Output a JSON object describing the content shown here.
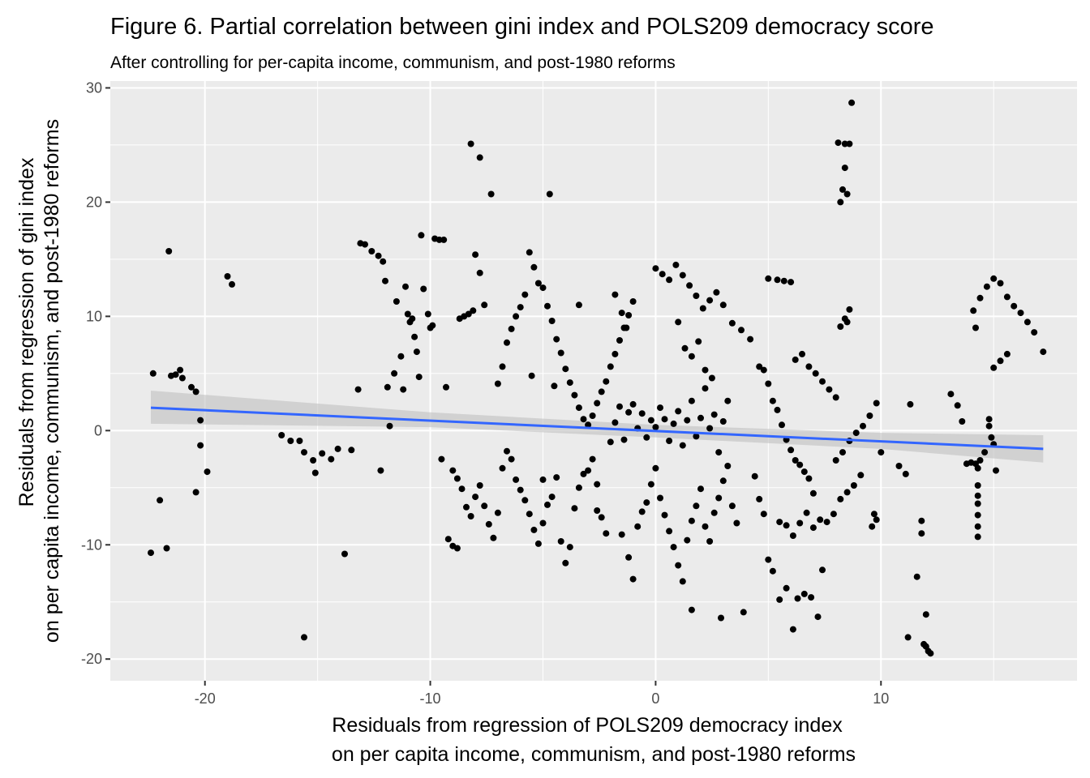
{
  "chart_data": {
    "type": "scatter",
    "title": "Figure 6. Partial correlation between gini index and POLS209 democracy score",
    "subtitle": "After controlling for per-capita income, communism, and post-1980 reforms",
    "xlabel_lines": [
      "Residuals from regression of POLS209 democracy index",
      "on per capita income, communism, and post-1980 reforms"
    ],
    "ylabel_lines": [
      "Residuals from regression of gini index",
      "on per capita income, communism, and post-1980 reforms"
    ],
    "xlim": [
      -24.2,
      18.7
    ],
    "ylim": [
      -21.9,
      30.6
    ],
    "x_ticks": [
      -20,
      -10,
      0,
      10
    ],
    "y_ticks": [
      -20,
      -10,
      0,
      10,
      20,
      30
    ],
    "x_tick_labels": [
      "-20",
      "-10",
      "0",
      "10"
    ],
    "y_tick_labels": [
      "-20",
      "-10",
      "0",
      "10",
      "20",
      "30"
    ],
    "grid": true,
    "colors": {
      "panel": "#ebebeb",
      "grid_major": "#ffffff",
      "points": "#000000",
      "fit_line": "#3366ff",
      "confidence_band": "#bfbfbf"
    },
    "fit_line": {
      "x": [
        -22.4,
        17.2
      ],
      "y": [
        2.0,
        -1.6
      ]
    },
    "confidence_band": {
      "x": [
        -22.4,
        -10,
        0,
        10,
        17.2
      ],
      "lower": [
        0.6,
        0.3,
        -0.6,
        -1.6,
        -2.8
      ],
      "upper": [
        3.5,
        1.6,
        0.5,
        -0.2,
        -0.4
      ]
    },
    "points": [
      [
        -22.4,
        -10.7
      ],
      [
        -22.3,
        5.0
      ],
      [
        -22.0,
        -6.1
      ],
      [
        -21.7,
        -10.3
      ],
      [
        -21.6,
        15.7
      ],
      [
        -21.5,
        4.8
      ],
      [
        -21.3,
        4.9
      ],
      [
        -21.1,
        5.3
      ],
      [
        -21.0,
        4.6
      ],
      [
        -20.6,
        3.8
      ],
      [
        -20.4,
        3.4
      ],
      [
        -20.4,
        -5.4
      ],
      [
        -20.2,
        0.9
      ],
      [
        -20.2,
        -1.3
      ],
      [
        -19.9,
        -3.6
      ],
      [
        -19.0,
        13.5
      ],
      [
        -18.8,
        12.8
      ],
      [
        -16.6,
        -0.4
      ],
      [
        -16.2,
        -0.9
      ],
      [
        -15.8,
        -0.9
      ],
      [
        -15.6,
        -1.9
      ],
      [
        -15.6,
        -18.1
      ],
      [
        -15.2,
        -2.6
      ],
      [
        -15.1,
        -3.7
      ],
      [
        -14.8,
        -2.0
      ],
      [
        -14.4,
        -2.5
      ],
      [
        -14.1,
        -1.6
      ],
      [
        -13.8,
        -10.8
      ],
      [
        -13.5,
        -1.7
      ],
      [
        -13.2,
        3.6
      ],
      [
        -13.1,
        16.4
      ],
      [
        -12.9,
        16.3
      ],
      [
        -12.6,
        15.7
      ],
      [
        -12.3,
        15.3
      ],
      [
        -12.1,
        14.8
      ],
      [
        -12.2,
        -3.5
      ],
      [
        -12.0,
        13.1
      ],
      [
        -11.9,
        3.8
      ],
      [
        -11.8,
        0.4
      ],
      [
        -11.6,
        5.0
      ],
      [
        -11.5,
        11.3
      ],
      [
        -11.3,
        6.5
      ],
      [
        -11.2,
        3.6
      ],
      [
        -11.1,
        12.6
      ],
      [
        -11.0,
        10.2
      ],
      [
        -10.9,
        9.5
      ],
      [
        -10.8,
        9.8
      ],
      [
        -10.7,
        8.2
      ],
      [
        -10.6,
        6.9
      ],
      [
        -10.5,
        4.7
      ],
      [
        -10.4,
        17.1
      ],
      [
        -10.3,
        12.4
      ],
      [
        -10.1,
        10.2
      ],
      [
        -10.0,
        9.0
      ],
      [
        -9.9,
        9.2
      ],
      [
        -9.8,
        16.8
      ],
      [
        -9.6,
        16.7
      ],
      [
        -9.4,
        16.7
      ],
      [
        -9.3,
        3.8
      ],
      [
        -9.2,
        -9.5
      ],
      [
        -9.0,
        -10.1
      ],
      [
        -8.8,
        -10.3
      ],
      [
        -8.7,
        9.8
      ],
      [
        -8.5,
        10.0
      ],
      [
        -8.3,
        10.2
      ],
      [
        -8.1,
        10.5
      ],
      [
        -8.0,
        15.4
      ],
      [
        -7.8,
        13.8
      ],
      [
        -7.6,
        11.0
      ],
      [
        -8.2,
        25.1
      ],
      [
        -7.8,
        23.9
      ],
      [
        -7.3,
        20.7
      ],
      [
        -9.5,
        -2.5
      ],
      [
        -9.0,
        -3.5
      ],
      [
        -8.8,
        -4.2
      ],
      [
        -8.6,
        -5.1
      ],
      [
        -8.4,
        -6.7
      ],
      [
        -8.2,
        -7.5
      ],
      [
        -8.0,
        -5.8
      ],
      [
        -7.8,
        -4.8
      ],
      [
        -7.6,
        -6.6
      ],
      [
        -7.4,
        -8.2
      ],
      [
        -7.2,
        -9.4
      ],
      [
        -7.0,
        -7.2
      ],
      [
        -6.8,
        -3.3
      ],
      [
        -6.6,
        -1.8
      ],
      [
        -6.4,
        -2.5
      ],
      [
        -6.2,
        -4.3
      ],
      [
        -6.0,
        -5.2
      ],
      [
        -5.8,
        -6.1
      ],
      [
        -5.6,
        -7.3
      ],
      [
        -5.4,
        -8.7
      ],
      [
        -5.2,
        -9.9
      ],
      [
        -5.0,
        -8.1
      ],
      [
        -4.8,
        -6.5
      ],
      [
        -4.6,
        -5.8
      ],
      [
        -4.4,
        -4.1
      ],
      [
        -4.2,
        -9.7
      ],
      [
        -4.0,
        -11.6
      ],
      [
        -3.8,
        -10.2
      ],
      [
        -3.6,
        -6.8
      ],
      [
        -3.4,
        -5.0
      ],
      [
        -3.2,
        -3.8
      ],
      [
        -3.0,
        -3.5
      ],
      [
        -2.8,
        -2.5
      ],
      [
        -2.6,
        -4.7
      ],
      [
        -2.4,
        -7.6
      ],
      [
        -2.2,
        -9.0
      ],
      [
        -7.0,
        4.1
      ],
      [
        -6.8,
        5.6
      ],
      [
        -6.6,
        7.7
      ],
      [
        -6.4,
        8.9
      ],
      [
        -6.2,
        10.0
      ],
      [
        -6.0,
        10.8
      ],
      [
        -5.8,
        11.9
      ],
      [
        -5.6,
        15.6
      ],
      [
        -5.4,
        14.3
      ],
      [
        -5.2,
        12.9
      ],
      [
        -5.0,
        12.5
      ],
      [
        -4.8,
        10.9
      ],
      [
        -4.6,
        9.6
      ],
      [
        -4.4,
        8.0
      ],
      [
        -4.2,
        6.8
      ],
      [
        -4.0,
        5.4
      ],
      [
        -3.8,
        4.2
      ],
      [
        -3.6,
        3.1
      ],
      [
        -3.4,
        2.0
      ],
      [
        -3.2,
        1.0
      ],
      [
        -3.0,
        0.5
      ],
      [
        -2.8,
        1.3
      ],
      [
        -2.6,
        2.4
      ],
      [
        -2.4,
        3.4
      ],
      [
        -2.2,
        4.3
      ],
      [
        -2.0,
        5.6
      ],
      [
        -1.8,
        6.7
      ],
      [
        -1.6,
        7.9
      ],
      [
        -1.4,
        9.0
      ],
      [
        -1.2,
        10.1
      ],
      [
        -1.0,
        11.3
      ],
      [
        -5.5,
        4.8
      ],
      [
        -5.0,
        -4.3
      ],
      [
        -4.5,
        3.9
      ],
      [
        -4.7,
        20.7
      ],
      [
        -3.4,
        11.0
      ],
      [
        -2.6,
        -7.0
      ],
      [
        -2.0,
        -1.0
      ],
      [
        -1.8,
        0.7
      ],
      [
        -1.6,
        2.1
      ],
      [
        -1.4,
        -0.8
      ],
      [
        -1.2,
        1.6
      ],
      [
        -1.0,
        2.3
      ],
      [
        -0.8,
        0.2
      ],
      [
        -0.6,
        1.5
      ],
      [
        -0.4,
        -0.6
      ],
      [
        -0.2,
        0.9
      ],
      [
        0.0,
        0.3
      ],
      [
        0.2,
        2.0
      ],
      [
        0.4,
        1.0
      ],
      [
        0.6,
        -0.9
      ],
      [
        0.8,
        0.6
      ],
      [
        1.0,
        1.7
      ],
      [
        1.2,
        -1.3
      ],
      [
        1.4,
        0.9
      ],
      [
        1.6,
        2.6
      ],
      [
        1.8,
        -0.5
      ],
      [
        2.0,
        1.1
      ],
      [
        2.2,
        3.7
      ],
      [
        2.4,
        0.2
      ],
      [
        2.6,
        1.4
      ],
      [
        2.8,
        -1.9
      ],
      [
        3.0,
        0.8
      ],
      [
        3.2,
        2.6
      ],
      [
        -1.5,
        -9.1
      ],
      [
        -1.2,
        -11.1
      ],
      [
        -1.0,
        -13.0
      ],
      [
        -0.8,
        -8.4
      ],
      [
        -0.6,
        -7.1
      ],
      [
        -0.4,
        -6.3
      ],
      [
        -0.2,
        -4.7
      ],
      [
        0.0,
        -3.3
      ],
      [
        0.2,
        -5.9
      ],
      [
        0.4,
        -7.4
      ],
      [
        0.6,
        -8.8
      ],
      [
        0.8,
        -10.2
      ],
      [
        1.0,
        -11.8
      ],
      [
        1.2,
        -13.2
      ],
      [
        1.4,
        -9.6
      ],
      [
        1.6,
        -7.9
      ],
      [
        1.8,
        -6.6
      ],
      [
        2.0,
        -5.1
      ],
      [
        2.2,
        -8.4
      ],
      [
        2.4,
        -9.7
      ],
      [
        2.6,
        -7.2
      ],
      [
        2.8,
        -5.9
      ],
      [
        3.0,
        -4.4
      ],
      [
        3.2,
        -3.1
      ],
      [
        3.4,
        -6.6
      ],
      [
        3.6,
        -8.1
      ],
      [
        1.6,
        -15.7
      ],
      [
        2.9,
        -16.4
      ],
      [
        3.9,
        -15.9
      ],
      [
        0.0,
        14.2
      ],
      [
        0.3,
        13.7
      ],
      [
        0.6,
        13.2
      ],
      [
        0.9,
        14.5
      ],
      [
        1.2,
        13.6
      ],
      [
        1.5,
        12.7
      ],
      [
        1.8,
        11.8
      ],
      [
        2.1,
        10.7
      ],
      [
        2.4,
        11.4
      ],
      [
        2.7,
        12.1
      ],
      [
        3.0,
        11.0
      ],
      [
        -1.8,
        11.9
      ],
      [
        -1.5,
        10.3
      ],
      [
        -1.3,
        9.0
      ],
      [
        1.0,
        9.5
      ],
      [
        1.3,
        7.2
      ],
      [
        1.6,
        6.5
      ],
      [
        1.9,
        7.8
      ],
      [
        2.2,
        5.3
      ],
      [
        2.5,
        4.6
      ],
      [
        3.4,
        9.4
      ],
      [
        3.8,
        8.8
      ],
      [
        4.2,
        8.0
      ],
      [
        4.6,
        5.6
      ],
      [
        4.8,
        5.3
      ],
      [
        5.0,
        4.1
      ],
      [
        5.2,
        2.6
      ],
      [
        5.4,
        1.8
      ],
      [
        5.6,
        0.5
      ],
      [
        5.8,
        -0.8
      ],
      [
        6.0,
        -1.7
      ],
      [
        6.2,
        -2.6
      ],
      [
        6.4,
        -3.0
      ],
      [
        6.6,
        -3.6
      ],
      [
        6.8,
        -4.2
      ],
      [
        7.0,
        -5.5
      ],
      [
        4.4,
        -4.0
      ],
      [
        4.6,
        -6.0
      ],
      [
        4.8,
        -7.3
      ],
      [
        5.0,
        -11.3
      ],
      [
        5.2,
        -12.3
      ],
      [
        5.5,
        -14.8
      ],
      [
        5.8,
        -13.8
      ],
      [
        6.1,
        -17.4
      ],
      [
        6.3,
        -14.7
      ],
      [
        6.6,
        -14.3
      ],
      [
        6.9,
        -14.6
      ],
      [
        7.2,
        -16.3
      ],
      [
        7.4,
        -12.2
      ],
      [
        5.0,
        13.3
      ],
      [
        5.4,
        13.2
      ],
      [
        5.7,
        13.1
      ],
      [
        6.0,
        13.0
      ],
      [
        6.2,
        6.2
      ],
      [
        6.5,
        6.7
      ],
      [
        6.8,
        5.6
      ],
      [
        7.1,
        5.0
      ],
      [
        7.4,
        4.3
      ],
      [
        7.7,
        3.6
      ],
      [
        8.0,
        2.9
      ],
      [
        5.5,
        -8.0
      ],
      [
        5.8,
        -8.3
      ],
      [
        6.1,
        -9.2
      ],
      [
        6.4,
        -8.1
      ],
      [
        6.7,
        -7.2
      ],
      [
        7.0,
        -8.5
      ],
      [
        7.3,
        -7.8
      ],
      [
        7.6,
        -8.0
      ],
      [
        7.9,
        -7.3
      ],
      [
        8.2,
        -6.0
      ],
      [
        8.5,
        -5.4
      ],
      [
        8.8,
        -4.8
      ],
      [
        9.1,
        -3.9
      ],
      [
        8.0,
        -2.6
      ],
      [
        8.3,
        -1.9
      ],
      [
        8.6,
        -0.9
      ],
      [
        8.9,
        -0.2
      ],
      [
        9.2,
        0.4
      ],
      [
        9.5,
        1.3
      ],
      [
        9.8,
        2.4
      ],
      [
        8.2,
        20.0
      ],
      [
        8.3,
        21.1
      ],
      [
        8.5,
        20.7
      ],
      [
        8.4,
        23.0
      ],
      [
        8.1,
        25.2
      ],
      [
        8.4,
        25.1
      ],
      [
        8.6,
        25.1
      ],
      [
        8.7,
        28.7
      ],
      [
        8.2,
        9.1
      ],
      [
        8.4,
        9.8
      ],
      [
        8.6,
        10.6
      ],
      [
        8.5,
        9.5
      ],
      [
        9.8,
        -7.8
      ],
      [
        9.6,
        -8.4
      ],
      [
        9.7,
        -7.3
      ],
      [
        10.0,
        -1.9
      ],
      [
        10.8,
        -3.1
      ],
      [
        11.1,
        -3.8
      ],
      [
        11.3,
        2.3
      ],
      [
        11.2,
        -18.1
      ],
      [
        11.6,
        -12.8
      ],
      [
        11.8,
        -7.9
      ],
      [
        11.8,
        -9.0
      ],
      [
        11.9,
        -18.7
      ],
      [
        12.0,
        -18.9
      ],
      [
        12.1,
        -19.3
      ],
      [
        12.2,
        -19.5
      ],
      [
        12.0,
        -16.1
      ],
      [
        13.1,
        3.2
      ],
      [
        13.4,
        2.2
      ],
      [
        13.6,
        0.8
      ],
      [
        13.8,
        -2.9
      ],
      [
        14.0,
        -2.8
      ],
      [
        14.2,
        -2.9
      ],
      [
        14.4,
        -2.6
      ],
      [
        14.6,
        -1.9
      ],
      [
        14.1,
        10.5
      ],
      [
        14.2,
        9.0
      ],
      [
        14.4,
        11.6
      ],
      [
        14.7,
        12.6
      ],
      [
        15.0,
        13.3
      ],
      [
        15.3,
        12.9
      ],
      [
        15.6,
        11.7
      ],
      [
        15.9,
        10.9
      ],
      [
        16.2,
        10.3
      ],
      [
        16.5,
        9.5
      ],
      [
        16.8,
        8.6
      ],
      [
        17.2,
        6.9
      ],
      [
        15.0,
        5.5
      ],
      [
        15.3,
        6.1
      ],
      [
        15.6,
        6.7
      ],
      [
        14.8,
        1.0
      ],
      [
        14.8,
        0.4
      ],
      [
        14.9,
        -0.6
      ],
      [
        15.0,
        -1.2
      ],
      [
        15.1,
        -3.5
      ],
      [
        14.3,
        -3.3
      ],
      [
        14.3,
        -4.8
      ],
      [
        14.3,
        -5.7
      ],
      [
        14.3,
        -6.4
      ],
      [
        14.3,
        -7.4
      ],
      [
        14.3,
        -8.4
      ],
      [
        14.3,
        -9.3
      ]
    ]
  }
}
